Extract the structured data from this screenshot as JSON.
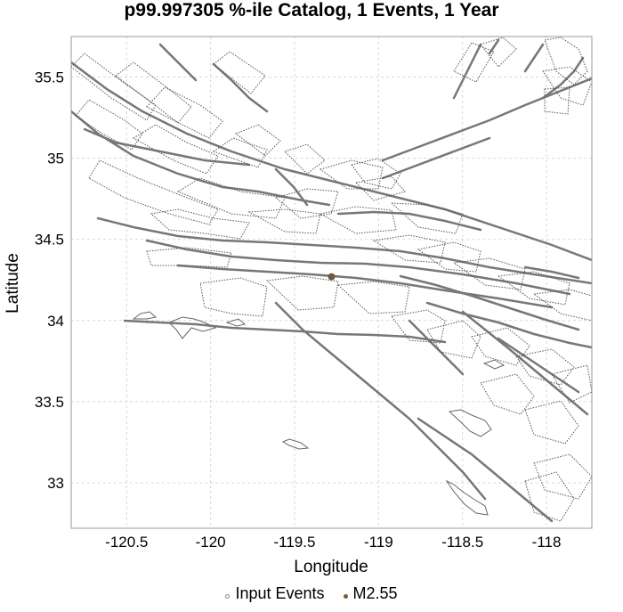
{
  "title": "p99.997305 %-ile Catalog, 1 Events, 1 Year",
  "colors": {
    "fault": "#777777",
    "grid": "#d8d8d8",
    "coast": "#666666",
    "event": "#7a5a3a"
  },
  "chart_data": {
    "type": "scatter",
    "title": "p99.997305 %-ile Catalog, 1 Events, 1 Year",
    "xlabel": "Longitude",
    "ylabel": "Latitude",
    "xlim": [
      -120.83,
      -117.73
    ],
    "ylim": [
      32.72,
      35.75
    ],
    "xticks": [
      -120.5,
      -120,
      -119.5,
      -119,
      -118.5,
      -118
    ],
    "xtick_labels": [
      "-120.5",
      "-120",
      "-119.5",
      "-119",
      "-118.5",
      "-118"
    ],
    "yticks": [
      35.5,
      35,
      34.5,
      34,
      33.5,
      33
    ],
    "ytick_labels": [
      "35.5",
      "35",
      "34.5",
      "34",
      "33.5",
      "33"
    ],
    "grid": true,
    "legend_position": "bottom",
    "series": [
      {
        "name": "Input Events",
        "points": []
      },
      {
        "name": "M2.55",
        "points": [
          {
            "x": -119.28,
            "y": 34.27,
            "magnitude": 2.55
          }
        ]
      }
    ]
  },
  "legend": {
    "items": [
      {
        "label": "Input Events",
        "icon": "hollow-circle"
      },
      {
        "label": "M2.55",
        "icon": "filled-circle"
      }
    ]
  }
}
